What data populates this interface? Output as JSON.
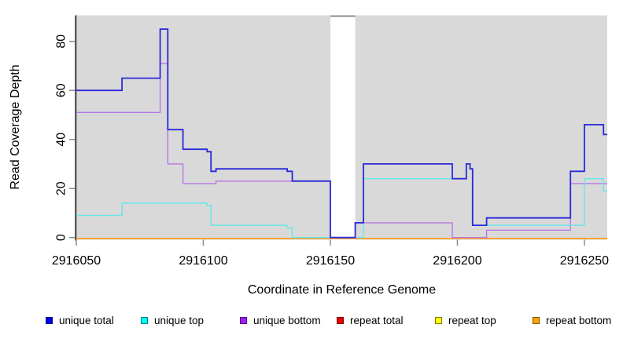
{
  "chart_data": {
    "type": "line",
    "subtype": "step-coverage-plot",
    "title": "",
    "xlabel": "Coordinate in Reference Genome",
    "ylabel": "Read Coverage Depth",
    "xlim": [
      2916050,
      2916259
    ],
    "x_end": 2916259,
    "ylim": [
      0,
      90
    ],
    "grid": false,
    "plot_bg": "#d9d9d9",
    "gap_region": [
      2916150,
      2916159.8
    ],
    "xticks": [
      {
        "label": "2916050",
        "value": 2916050
      },
      {
        "label": "2916100",
        "value": 2916100
      },
      {
        "label": "2916150",
        "value": 2916150
      },
      {
        "label": "2916200",
        "value": 2916200
      },
      {
        "label": "2916250",
        "value": 2916250
      }
    ],
    "yticks": [
      {
        "label": "0",
        "value": 0
      },
      {
        "label": "20",
        "value": 20
      },
      {
        "label": "40",
        "value": 40
      },
      {
        "label": "60",
        "value": 60
      },
      {
        "label": "80",
        "value": 80
      }
    ],
    "series": [
      {
        "key": "repeat_total",
        "name": "repeat total",
        "color": "#cc0000",
        "points": [
          [
            2916050,
            0
          ]
        ]
      },
      {
        "key": "repeat_top",
        "name": "repeat top",
        "color": "#ffff00",
        "points": [
          [
            2916050,
            0
          ]
        ]
      },
      {
        "key": "repeat_bottom",
        "name": "repeat bottom",
        "color": "#ff9f2a",
        "points": [
          [
            2916050,
            0
          ]
        ]
      },
      {
        "key": "unique_bottom",
        "name": "unique bottom",
        "color": "#b878e6",
        "points": [
          [
            2916050,
            51
          ],
          [
            2916083,
            71
          ],
          [
            2916086,
            30
          ],
          [
            2916092,
            22
          ],
          [
            2916105,
            23
          ],
          [
            2916150,
            0
          ],
          [
            2916159.8,
            6
          ],
          [
            2916198,
            0
          ],
          [
            2916211.5,
            3
          ],
          [
            2916244.5,
            22
          ]
        ]
      },
      {
        "key": "unique_top",
        "name": "unique top",
        "color": "#62e8e8",
        "points": [
          [
            2916050,
            9
          ],
          [
            2916068,
            14
          ],
          [
            2916101.5,
            13
          ],
          [
            2916103,
            5
          ],
          [
            2916133,
            4
          ],
          [
            2916135,
            0
          ],
          [
            2916163,
            24
          ],
          [
            2916203.5,
            30
          ],
          [
            2916205,
            28
          ],
          [
            2916206,
            5
          ],
          [
            2916250,
            24
          ],
          [
            2916257.5,
            19
          ]
        ]
      },
      {
        "key": "unique_total",
        "name": "unique total",
        "color": "#2a2ad9",
        "points": [
          [
            2916050,
            60
          ],
          [
            2916068,
            65
          ],
          [
            2916083,
            85
          ],
          [
            2916086,
            44
          ],
          [
            2916092,
            36
          ],
          [
            2916101.5,
            35
          ],
          [
            2916103,
            27
          ],
          [
            2916105,
            28
          ],
          [
            2916133,
            27
          ],
          [
            2916135,
            23
          ],
          [
            2916150,
            0
          ],
          [
            2916159.8,
            6
          ],
          [
            2916163,
            30
          ],
          [
            2916198,
            24
          ],
          [
            2916203.5,
            30
          ],
          [
            2916205,
            28
          ],
          [
            2916206,
            5
          ],
          [
            2916211.5,
            8
          ],
          [
            2916244.5,
            27
          ],
          [
            2916250,
            46
          ],
          [
            2916257.5,
            42
          ]
        ]
      }
    ],
    "legend": [
      {
        "key": "unique_total",
        "label": "unique total",
        "color": "#0000ee"
      },
      {
        "key": "unique_top",
        "label": "unique top",
        "color": "#00ffff"
      },
      {
        "key": "unique_bottom",
        "label": "unique bottom",
        "color": "#a020f0"
      },
      {
        "key": "repeat_total",
        "label": "repeat total",
        "color": "#ee0000"
      },
      {
        "key": "repeat_top",
        "label": "repeat top",
        "color": "#ffff00"
      },
      {
        "key": "repeat_bottom",
        "label": "repeat bottom",
        "color": "#ffa500"
      }
    ]
  }
}
